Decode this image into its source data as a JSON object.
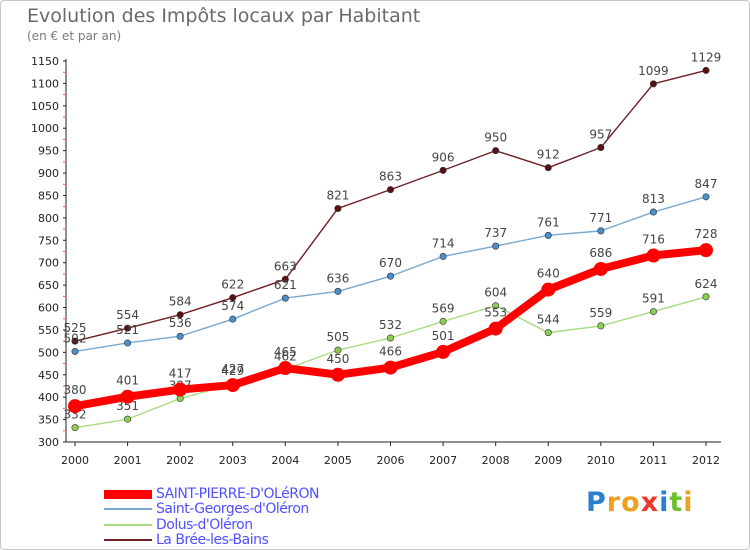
{
  "chart_data": {
    "type": "line",
    "title": "Evolution des Impôts locaux par Habitant",
    "subtitle": "(en € et par an)",
    "xlabel": "",
    "ylabel": "",
    "ylim": [
      300,
      1150
    ],
    "yticks": [
      300,
      350,
      400,
      450,
      500,
      550,
      600,
      650,
      700,
      750,
      800,
      850,
      900,
      950,
      1000,
      1050,
      1100,
      1150
    ],
    "categories": [
      "2000",
      "2001",
      "2002",
      "2003",
      "2004",
      "2005",
      "2006",
      "2007",
      "2008",
      "2009",
      "2010",
      "2011",
      "2012"
    ],
    "legend_position": "bottom-left",
    "grid": false,
    "series": [
      {
        "name": "La Brée-les-Bains",
        "color": "#6e1f23",
        "marker": "#5a0f14",
        "values": [
          525,
          554,
          584,
          622,
          663,
          821,
          863,
          906,
          950,
          912,
          957,
          1099,
          1129
        ]
      },
      {
        "name": "Saint-Georges-d'Oléron",
        "color": "#7aa8cf",
        "marker": "#4a8ecc",
        "values": [
          502,
          521,
          536,
          574,
          621,
          636,
          670,
          714,
          737,
          761,
          771,
          813,
          847
        ]
      },
      {
        "name": "Dolus-d'Oléron",
        "color": "#a8dc80",
        "marker": "#8ad050",
        "values": [
          332,
          351,
          397,
          429,
          462,
          505,
          532,
          569,
          604,
          544,
          559,
          591,
          624
        ]
      },
      {
        "name": "SAINT-PIERRE-D'OLéRON",
        "color": "#ff0000",
        "marker": "#ff0000",
        "values": [
          380,
          401,
          417,
          427,
          465,
          450,
          466,
          501,
          553,
          640,
          686,
          716,
          728
        ]
      }
    ]
  },
  "legend": [
    {
      "label": "SAINT-PIERRE-D'OLéRON",
      "color": "#ff0000",
      "text_color": "#5050ff"
    },
    {
      "label": "Saint-Georges-d'Oléron",
      "color": "#7aa8cf",
      "text_color": "#5050ff"
    },
    {
      "label": "Dolus-d'Oléron",
      "color": "#a8dc80",
      "text_color": "#5050ff"
    },
    {
      "label": "La Brée-les-Bains",
      "color": "#6e1f23",
      "text_color": "#5050ff"
    }
  ],
  "brand": {
    "letters": [
      "P",
      "r",
      "o",
      "x",
      "i",
      "t",
      "i"
    ],
    "colors": [
      "#2b7fd1",
      "#f0a020",
      "#f0a020",
      "#e83a2a",
      "#2b7fd1",
      "#6cbf2e",
      "#f0a020"
    ]
  }
}
